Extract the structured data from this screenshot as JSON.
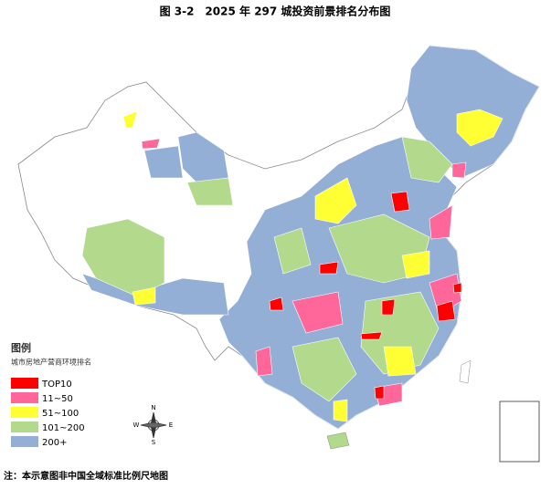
{
  "title": "图 3-2　2025 年 297 城投资前景排名分布图",
  "legend": {
    "title": "图例",
    "subtitle": "城市房地产营商环境排名",
    "items": [
      {
        "label": "TOP10",
        "color": "#ff0000"
      },
      {
        "label": "11~50",
        "color": "#ff6699"
      },
      {
        "label": "51~100",
        "color": "#ffff33"
      },
      {
        "label": "101~200",
        "color": "#b3d98c"
      },
      {
        "label": "200+",
        "color": "#94afd6"
      }
    ]
  },
  "compass": [
    "N",
    "E",
    "S",
    "W"
  ],
  "note": "注：本示意图非中国全域标准比例尺地图"
}
